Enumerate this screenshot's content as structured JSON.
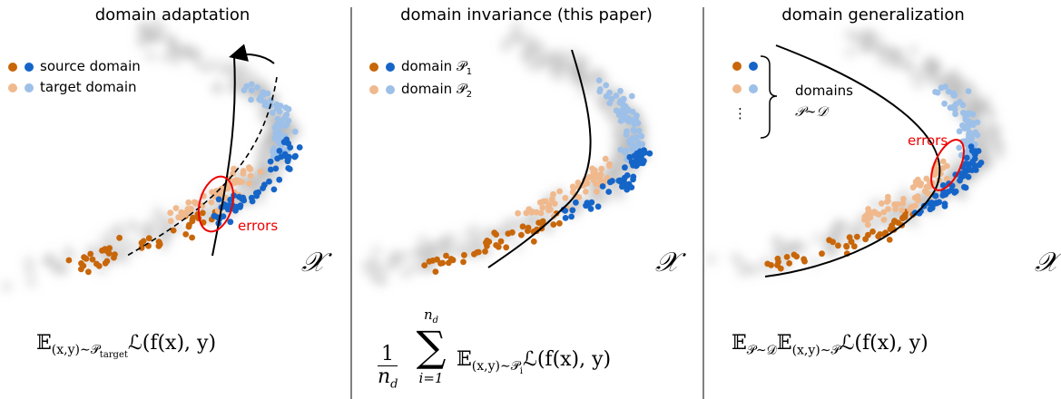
{
  "panels": [
    {
      "title": "domain adaptation",
      "legend": [
        {
          "text": "source domain"
        },
        {
          "text": "target domain"
        }
      ],
      "annotation": "errors",
      "space": "𝒳",
      "formula": {
        "e": "𝔼",
        "sub": "(x,y)∼𝒫",
        "subsub": "target",
        "rest": "ℒ(f(x), y)"
      }
    },
    {
      "title": "domain invariance (this paper)",
      "legend": [
        {
          "text": "domain 𝒫",
          "sub": "1"
        },
        {
          "text": "domain 𝒫",
          "sub": "2"
        }
      ],
      "space": "𝒳",
      "formula": {
        "num": "1",
        "den": "n",
        "densub": "d",
        "top": "n",
        "topsub": "d",
        "sum": "∑",
        "bottom": "i=1",
        "e": "𝔼",
        "sub": "(x,y)∼𝒫",
        "subsub": "i",
        "rest": "ℒ(f(x), y)"
      }
    },
    {
      "title": "domain generalization",
      "legend": [
        {
          "text": "domains"
        },
        {
          "text": "𝒫∼𝒟"
        }
      ],
      "dots": "⋮",
      "annotation": "errors",
      "space": "𝒳",
      "formula": {
        "e1": "𝔼",
        "sub1": "𝒫∼𝒟",
        "e2": "𝔼",
        "sub2": "(x,y)∼𝒫",
        "rest": "ℒ(f(x), y)"
      }
    }
  ]
}
